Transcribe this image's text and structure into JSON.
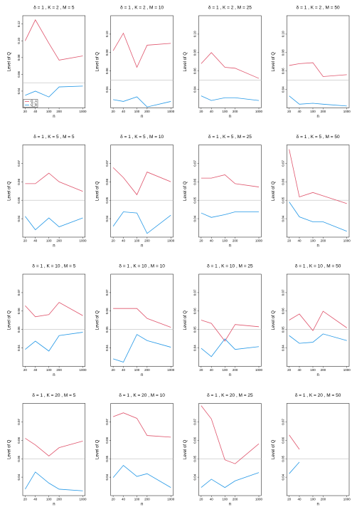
{
  "chart_data": [
    {
      "type": "line",
      "title": "δ = 1 , K = 2 , M = 5",
      "xlabel": "n",
      "ylabel": "Level of Q",
      "xscale": "log",
      "x": [
        20,
        40,
        100,
        200,
        1000
      ],
      "xlim": [
        17,
        1170
      ],
      "xticks": [
        20,
        40,
        100,
        200,
        1000
      ],
      "ylim": [
        0.02,
        0.13
      ],
      "yticks": [
        0.04,
        0.06,
        0.08,
        {
          "value": 0.1,
          "label": "0.10"
        },
        0.12
      ],
      "hline": 0.05,
      "legend": "lower left",
      "series": [
        {
          "name": "Q_A",
          "color": "#DF536B",
          "values": [
            0.1,
            0.125,
            0.097,
            0.077,
            0.082
          ]
        },
        {
          "name": "Q_B",
          "color": "#2297E6",
          "values": [
            0.035,
            0.04,
            0.033,
            0.045,
            0.046
          ]
        }
      ]
    },
    {
      "type": "line",
      "title": "δ = 1 , K = 2 , M = 10",
      "xlabel": "n",
      "ylabel": "Level of Q",
      "xscale": "log",
      "x": [
        20,
        40,
        100,
        200,
        1000
      ],
      "xlim": [
        17,
        1170
      ],
      "xticks": [
        20,
        40,
        100,
        200,
        1000
      ],
      "ylim": [
        0.02,
        0.12
      ],
      "yticks": [
        0.04,
        0.06,
        0.08,
        {
          "value": 0.1,
          "label": "0.10"
        }
      ],
      "hline": 0.05,
      "series": [
        {
          "name": "Q_A",
          "color": "#DF536B",
          "values": [
            0.082,
            0.101,
            0.064,
            0.088,
            0.09
          ]
        },
        {
          "name": "Q_B",
          "color": "#2297E6",
          "values": [
            0.029,
            0.027,
            0.032,
            0.021,
            0.027
          ]
        }
      ]
    },
    {
      "type": "line",
      "title": "δ = 1 , K = 2 , M = 25",
      "xlabel": "n",
      "ylabel": "Level of Q",
      "xscale": "log",
      "x": [
        20,
        40,
        100,
        200,
        1000
      ],
      "xlim": [
        17,
        1170
      ],
      "xticks": [
        20,
        40,
        100,
        200,
        1000
      ],
      "ylim": [
        0.02,
        0.12
      ],
      "yticks": [
        0.04,
        0.06,
        0.08,
        {
          "value": 0.1,
          "label": "0.10"
        }
      ],
      "hline": 0.05,
      "series": [
        {
          "name": "Q_A",
          "color": "#DF536B",
          "values": [
            0.068,
            0.08,
            0.064,
            0.063,
            0.052
          ]
        },
        {
          "name": "Q_B",
          "color": "#2297E6",
          "values": [
            0.033,
            0.028,
            0.031,
            0.031,
            0.028
          ]
        }
      ]
    },
    {
      "type": "line",
      "title": "δ = 1 , K = 2 , M = 50",
      "xlabel": "n",
      "ylabel": "Level of Q",
      "xscale": "log",
      "x": [
        20,
        40,
        100,
        200,
        1000
      ],
      "xlim": [
        17,
        1170
      ],
      "xticks": [
        20,
        40,
        100,
        200,
        1000
      ],
      "ylim": [
        0.02,
        0.12
      ],
      "yticks": [
        0.04,
        0.06,
        0.08,
        {
          "value": 0.1,
          "label": "0.10"
        }
      ],
      "hline": 0.05,
      "series": [
        {
          "name": "Q_A",
          "color": "#DF536B",
          "values": [
            0.066,
            0.068,
            0.069,
            0.054,
            0.056
          ]
        },
        {
          "name": "Q_B",
          "color": "#2297E6",
          "values": [
            0.033,
            0.024,
            0.025,
            0.024,
            0.022
          ]
        }
      ]
    },
    {
      "type": "line",
      "title": "δ = 1 , K = 5 , M = 5",
      "xlabel": "n",
      "ylabel": "Level of Q",
      "xscale": "log",
      "x": [
        20,
        40,
        100,
        200,
        1000
      ],
      "xlim": [
        17,
        1170
      ],
      "xticks": [
        20,
        40,
        100,
        200,
        1000
      ],
      "ylim": [
        0.03,
        0.08
      ],
      "yticks": [
        0.04,
        0.05,
        0.06,
        0.07
      ],
      "hline": 0.05,
      "series": [
        {
          "name": "Q_A",
          "color": "#DF536B",
          "values": [
            0.059,
            0.059,
            0.0647,
            0.06,
            0.0548
          ]
        },
        {
          "name": "Q_B",
          "color": "#2297E6",
          "values": [
            0.0413,
            0.034,
            0.0404,
            0.0356,
            0.0404
          ]
        }
      ]
    },
    {
      "type": "line",
      "title": "δ = 1 , K = 5 , M = 10",
      "xlabel": "n",
      "ylabel": "Level of Q",
      "xscale": "log",
      "x": [
        20,
        40,
        100,
        200,
        1000
      ],
      "xlim": [
        17,
        1170
      ],
      "xticks": [
        20,
        40,
        100,
        200,
        1000
      ],
      "ylim": [
        0.03,
        0.08
      ],
      "yticks": [
        0.04,
        0.05,
        0.06,
        0.07
      ],
      "hline": 0.05,
      "series": [
        {
          "name": "Q_A",
          "color": "#DF536B",
          "values": [
            0.0677,
            0.0623,
            0.053,
            0.0653,
            0.06
          ]
        },
        {
          "name": "Q_B",
          "color": "#2297E6",
          "values": [
            0.0359,
            0.0437,
            0.0431,
            0.032,
            0.0419
          ]
        }
      ]
    },
    {
      "type": "line",
      "title": "δ = 1 , K = 5 , M = 25",
      "xlabel": "n",
      "ylabel": "Level of Q",
      "xscale": "log",
      "x": [
        20,
        40,
        100,
        200,
        1000
      ],
      "xlim": [
        17,
        1170
      ],
      "xticks": [
        20,
        40,
        100,
        200,
        1000
      ],
      "ylim": [
        0.03,
        0.08
      ],
      "yticks": [
        0.04,
        0.05,
        0.06,
        0.07
      ],
      "hline": 0.05,
      "series": [
        {
          "name": "Q_A",
          "color": "#DF536B",
          "values": [
            0.062,
            0.062,
            0.0638,
            0.059,
            0.0572
          ]
        },
        {
          "name": "Q_B",
          "color": "#2297E6",
          "values": [
            0.0431,
            0.0407,
            0.0422,
            0.0437,
            0.0437
          ]
        }
      ]
    },
    {
      "type": "line",
      "title": "δ = 1 , K = 5 , M = 50",
      "xlabel": "n",
      "ylabel": "Level of Q",
      "xscale": "log",
      "x": [
        20,
        40,
        100,
        200,
        1000
      ],
      "xlim": [
        17,
        1170
      ],
      "xticks": [
        20,
        40,
        100,
        200,
        1000
      ],
      "ylim": [
        0.03,
        0.08
      ],
      "yticks": [
        0.04,
        0.05,
        0.06,
        0.07
      ],
      "hline": 0.05,
      "series": [
        {
          "name": "Q_A",
          "color": "#DF536B",
          "values": [
            0.0776,
            0.0518,
            0.0542,
            0.0524,
            0.0482
          ]
        },
        {
          "name": "Q_B",
          "color": "#2297E6",
          "values": [
            0.0491,
            0.041,
            0.0383,
            0.0383,
            0.0332
          ]
        }
      ]
    },
    {
      "type": "line",
      "title": "δ = 1 , K = 10 , M = 5",
      "xlabel": "n",
      "ylabel": "Level of Q",
      "xscale": "log",
      "x": [
        20,
        40,
        100,
        200,
        1000
      ],
      "xlim": [
        17,
        1170
      ],
      "xticks": [
        20,
        40,
        100,
        200,
        1000
      ],
      "ylim": [
        0.03,
        0.08
      ],
      "yticks": [
        0.04,
        0.05,
        0.06,
        0.07
      ],
      "hline": 0.05,
      "series": [
        {
          "name": "Q_A",
          "color": "#DF536B",
          "values": [
            0.0629,
            0.0569,
            0.0581,
            0.0647,
            0.0575
          ]
        },
        {
          "name": "Q_B",
          "color": "#2297E6",
          "values": [
            0.0392,
            0.0437,
            0.0383,
            0.0467,
            0.0485
          ]
        }
      ]
    },
    {
      "type": "line",
      "title": "δ = 1 , K = 10 , M = 10",
      "xlabel": "n",
      "ylabel": "Level of Q",
      "xscale": "log",
      "x": [
        20,
        40,
        100,
        200,
        1000
      ],
      "xlim": [
        17,
        1170
      ],
      "xticks": [
        20,
        40,
        100,
        200,
        1000
      ],
      "ylim": [
        0.03,
        0.08
      ],
      "yticks": [
        0.04,
        0.05,
        0.06,
        0.07
      ],
      "hline": 0.05,
      "series": [
        {
          "name": "Q_A",
          "color": "#DF536B",
          "values": [
            0.0614,
            0.0614,
            0.0614,
            0.056,
            0.0512
          ]
        },
        {
          "name": "Q_B",
          "color": "#2297E6",
          "values": [
            0.0341,
            0.0323,
            0.0473,
            0.044,
            0.0404
          ]
        }
      ]
    },
    {
      "type": "line",
      "title": "δ = 1 , K = 10 , M = 25",
      "xlabel": "n",
      "ylabel": "Level of Q",
      "xscale": "log",
      "x": [
        20,
        40,
        100,
        200,
        1000
      ],
      "xlim": [
        17,
        1170
      ],
      "xticks": [
        20,
        40,
        100,
        200,
        1000
      ],
      "ylim": [
        0.03,
        0.08
      ],
      "yticks": [
        0.04,
        0.05,
        0.06,
        0.07
      ],
      "hline": 0.05,
      "series": [
        {
          "name": "Q_A",
          "color": "#DF536B",
          "values": [
            0.0551,
            0.0533,
            0.0437,
            0.0527,
            0.0515
          ]
        },
        {
          "name": "Q_B",
          "color": "#2297E6",
          "values": [
            0.0398,
            0.0353,
            0.0449,
            0.0392,
            0.0407
          ]
        }
      ]
    },
    {
      "type": "line",
      "title": "δ = 1 , K = 10 , M = 50",
      "xlabel": "n",
      "ylabel": "Level of Q",
      "xscale": "log",
      "x": [
        20,
        40,
        100,
        200,
        1000
      ],
      "xlim": [
        17,
        1170
      ],
      "xticks": [
        20,
        40,
        100,
        200,
        1000
      ],
      "ylim": [
        0.03,
        0.08
      ],
      "yticks": [
        0.04,
        0.05,
        0.06,
        0.07
      ],
      "hline": 0.05,
      "series": [
        {
          "name": "Q_A",
          "color": "#DF536B",
          "values": [
            0.0551,
            0.0584,
            0.0494,
            0.0599,
            0.0509
          ]
        },
        {
          "name": "Q_B",
          "color": "#2297E6",
          "values": [
            0.0467,
            0.0425,
            0.0431,
            0.0476,
            0.044
          ]
        }
      ]
    },
    {
      "type": "line",
      "title": "δ = 1 , K = 20 , M = 5",
      "xlabel": "n",
      "ylabel": "Level of Q",
      "xscale": "log",
      "x": [
        20,
        40,
        100,
        200,
        1000
      ],
      "xlim": [
        17,
        1170
      ],
      "xticks": [
        20,
        40,
        100,
        200,
        1000
      ],
      "ylim": [
        0.03,
        0.08
      ],
      "yticks": [
        0.04,
        0.05,
        0.06,
        0.07
      ],
      "hline": 0.05,
      "series": [
        {
          "name": "Q_A",
          "color": "#DF536B",
          "values": [
            0.0611,
            0.0575,
            0.0515,
            0.056,
            0.0596
          ]
        },
        {
          "name": "Q_B",
          "color": "#2297E6",
          "values": [
            0.0335,
            0.0428,
            0.0368,
            0.0335,
            0.0326
          ]
        }
      ]
    },
    {
      "type": "line",
      "title": "δ = 1 , K = 20 , M = 10",
      "xlabel": "n",
      "ylabel": "Level of Q",
      "xscale": "log",
      "x": [
        20,
        40,
        100,
        200,
        1000
      ],
      "xlim": [
        17,
        1170
      ],
      "xticks": [
        20,
        40,
        100,
        200,
        1000
      ],
      "ylim": [
        0.03,
        0.08
      ],
      "yticks": [
        0.04,
        0.05,
        0.06,
        0.07
      ],
      "hline": 0.05,
      "series": [
        {
          "name": "Q_A",
          "color": "#DF536B",
          "values": [
            0.0728,
            0.0749,
            0.0719,
            0.0626,
            0.0617
          ]
        },
        {
          "name": "Q_B",
          "color": "#2297E6",
          "values": [
            0.0398,
            0.0464,
            0.0404,
            0.0419,
            0.0344
          ]
        }
      ]
    },
    {
      "type": "line",
      "title": "δ = 1 , K = 20 , M = 25",
      "xlabel": "n",
      "ylabel": "Level of Q",
      "xscale": "log",
      "x": [
        20,
        40,
        100,
        200,
        1000
      ],
      "xlim": [
        17,
        1170
      ],
      "xticks": [
        20,
        40,
        100,
        200,
        1000
      ],
      "ylim": [
        0.03,
        0.08
      ],
      "yticks": [
        0.04,
        0.05,
        0.06,
        0.07
      ],
      "hline": 0.05,
      "series": [
        {
          "name": "Q_A",
          "color": "#DF536B",
          "values": [
            0.0788,
            0.0716,
            0.0494,
            0.0473,
            0.0581
          ]
        },
        {
          "name": "Q_B",
          "color": "#2297E6",
          "values": [
            0.0344,
            0.0389,
            0.0344,
            0.038,
            0.0425
          ]
        }
      ]
    },
    {
      "type": "line",
      "title": "δ = 1 , K = 20 , M = 50",
      "xlabel": "n",
      "ylabel": "Level of Q",
      "xscale": "log",
      "x": [
        20,
        40,
        100,
        200,
        1000
      ],
      "xlim": [
        17,
        1170
      ],
      "xticks": [
        20,
        40,
        100,
        200,
        1000
      ],
      "ylim": [
        0.03,
        0.08
      ],
      "yticks": [
        0.04,
        0.05,
        0.06,
        0.07
      ],
      "hline": 0.05,
      "series": [
        {
          "name": "Q_A",
          "color": "#DF536B",
          "values": [
            0.0629,
            0.0551,
            null,
            null,
            null
          ]
        },
        {
          "name": "Q_B",
          "color": "#2297E6",
          "values": [
            0.0419,
            0.0482,
            null,
            null,
            null
          ]
        }
      ]
    }
  ]
}
